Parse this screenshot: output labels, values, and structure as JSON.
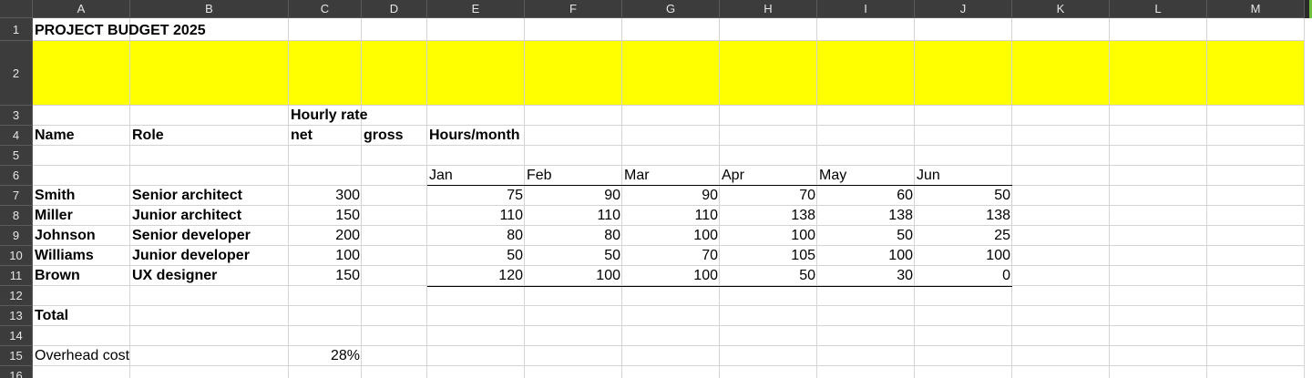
{
  "columns": [
    "A",
    "B",
    "C",
    "D",
    "E",
    "F",
    "G",
    "H",
    "I",
    "J",
    "K",
    "L",
    "M"
  ],
  "rows": [
    "1",
    "2",
    "3",
    "4",
    "5",
    "6",
    "7",
    "8",
    "9",
    "10",
    "11",
    "12",
    "13",
    "14",
    "15",
    "16"
  ],
  "title": "PROJECT BUDGET 2025",
  "headers": {
    "hourly_rate": "Hourly rate",
    "name": "Name",
    "role": "Role",
    "net": "net",
    "gross": "gross",
    "hours_month": "Hours/month"
  },
  "months": [
    "Jan",
    "Feb",
    "Mar",
    "Apr",
    "May",
    "Jun"
  ],
  "staff": [
    {
      "name": "Smith",
      "role": "Senior architect",
      "net": "300",
      "hours": [
        "75",
        "90",
        "90",
        "70",
        "60",
        "50"
      ]
    },
    {
      "name": "Miller",
      "role": "Junior architect",
      "net": "150",
      "hours": [
        "110",
        "110",
        "110",
        "138",
        "138",
        "138"
      ]
    },
    {
      "name": "Johnson",
      "role": "Senior developer",
      "net": "200",
      "hours": [
        "80",
        "80",
        "100",
        "100",
        "50",
        "25"
      ]
    },
    {
      "name": "Williams",
      "role": "Junior developer",
      "net": "100",
      "hours": [
        "50",
        "50",
        "70",
        "105",
        "100",
        "100"
      ]
    },
    {
      "name": "Brown",
      "role": "UX designer",
      "net": "150",
      "hours": [
        "120",
        "100",
        "100",
        "50",
        "30",
        "0"
      ]
    }
  ],
  "total_label": "Total",
  "overhead": {
    "label": "Overhead cost",
    "value": "28%"
  },
  "colors": {
    "highlight": "#ffff00",
    "header_bg": "#3c3c3c",
    "grid": "#d4d4d4"
  }
}
